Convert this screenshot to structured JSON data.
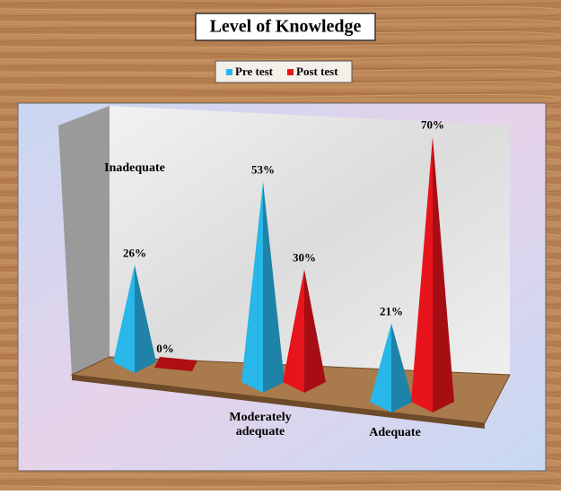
{
  "chart_data": {
    "type": "bar",
    "title": "Level of Knowledge",
    "categories": [
      "Inadequate",
      "Moderately adequate",
      "Adequate"
    ],
    "series": [
      {
        "name": "Pre test",
        "color": "#29b6e8",
        "values": [
          26,
          53,
          21
        ],
        "value_labels": [
          "26%",
          "53%",
          "21%"
        ]
      },
      {
        "name": "Post test",
        "color": "#e8141c",
        "values": [
          0,
          30,
          70
        ],
        "value_labels": [
          "0%",
          "30%",
          "70%"
        ]
      }
    ]
  }
}
